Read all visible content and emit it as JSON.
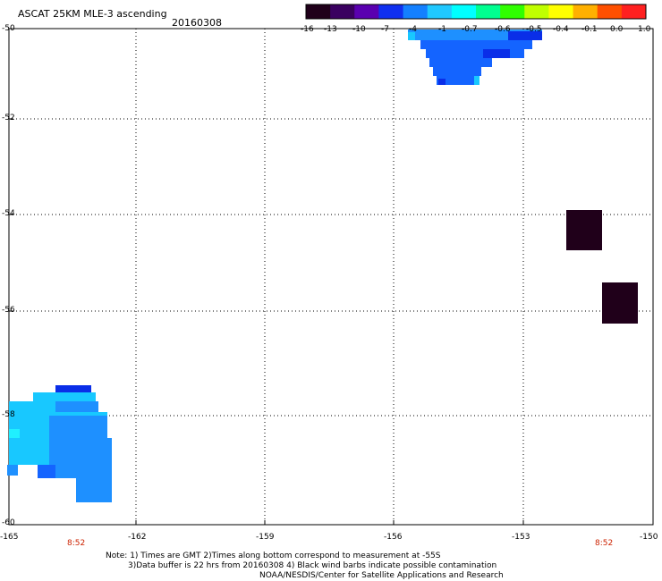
{
  "header": {
    "title": "ASCAT 25KM MLE-3 ascending",
    "date": "20160308"
  },
  "colorbar": {
    "labels": [
      "-16",
      "-13",
      "-10",
      "-7",
      "-4",
      "-1",
      "-0.7",
      "-0.6",
      "-0.5",
      "-0.4",
      "-0.1",
      "0.0",
      "1.0"
    ],
    "colors": [
      "#20001a",
      "#3a0060",
      "#5a00b0",
      "#1030f0",
      "#1480ff",
      "#20c8ff",
      "#00ffff",
      "#00ff90",
      "#30ff00",
      "#c0ff00",
      "#ffff00",
      "#ffb000",
      "#ff5000",
      "#ff2020"
    ]
  },
  "map": {
    "lat_labels": [
      "-50",
      "-52",
      "-54",
      "-56",
      "-58",
      "-60"
    ],
    "lon_labels": [
      "-165",
      "-162",
      "-159",
      "-156",
      "-153",
      "-150"
    ],
    "time_labels": [
      "8:52",
      "8:52"
    ],
    "colors": {
      "grid": "#000000",
      "very_low": "#20001a",
      "blue": "#1464ff",
      "blue_dark": "#0a2ee8",
      "blue_mid": "#1e90ff",
      "cyan": "#18c8ff",
      "cyan_light": "#20f0ff",
      "cyan_bright": "#00ffff"
    }
  },
  "notes": {
    "line1": "Note: 1) Times are GMT 2)Times along bottom correspond to measurement at -55S",
    "line2": "3)Data buffer is 22 hrs from 20160308 4) Black wind barbs indicate possible contamination",
    "line3": "NOAA/NESDIS/Center for Satellite Applications and Research"
  }
}
